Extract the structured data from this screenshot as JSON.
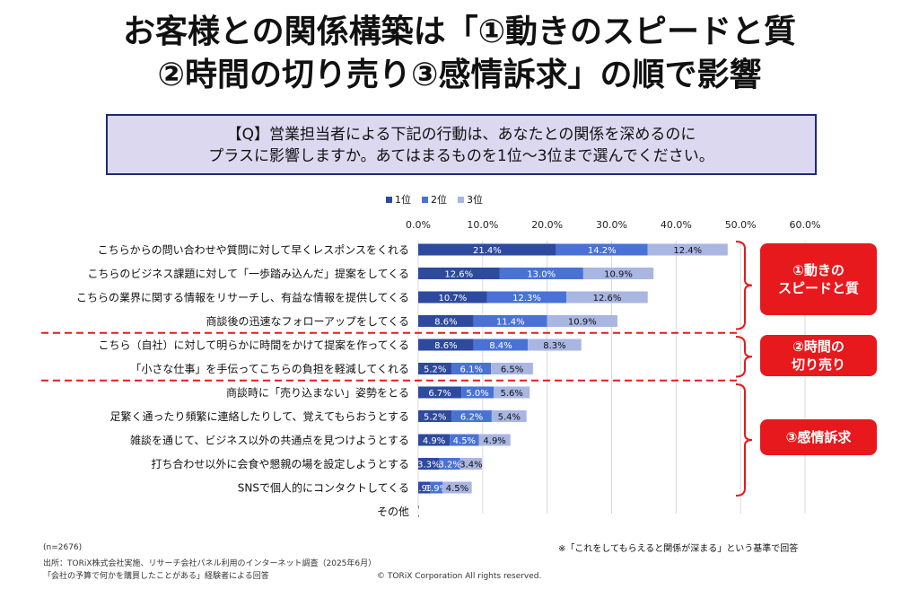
{
  "title_line1": "お客様との関係構築は「①動きのスピードと質",
  "title_line2": "②時間の切り売り③感情訴求」の順で影響",
  "question_line1": "【Q】営業担当者による下記の行動は、あなたとの関係を深めるのに",
  "question_line2": "プラスに影響しますか。あてはまるものを1位～3位まで選んでください。",
  "badges": [
    {
      "line1": "①動きの",
      "line2": "スピードと質"
    },
    {
      "line1": "②時間の",
      "line2": "切り売り"
    },
    {
      "line1": "③感情訴求",
      "line2": ""
    }
  ],
  "footer": {
    "n": "(n=2676)",
    "source1": "出所：TORiX株式会社実施、リサーチ会社パネル利用のインターネット調査（2025年6月）",
    "source2": "「会社の予算で何かを購買したことがある」経験者による回答",
    "note": "※「これをしてもらえると関係が深まる」という基準で回答",
    "copyright": "© TORiX Corporation All rights reserved."
  },
  "colors": {
    "rank1": "#2e4a9e",
    "rank2": "#4a72d6",
    "rank3": "#a9b6e2",
    "accent": "#e8191d",
    "divider": "#e8191d",
    "bracket": "#e8191d"
  },
  "chart_data": {
    "type": "bar",
    "orientation": "horizontal",
    "stacked": true,
    "xlim": [
      0,
      60
    ],
    "xticks": [
      "0.0%",
      "10.0%",
      "20.0%",
      "30.0%",
      "40.0%",
      "50.0%",
      "60.0%"
    ],
    "legend_position": "top",
    "categories": [
      "こちらからの問い合わせや質問に対して早くレスポンスをくれる",
      "こちらのビジネス課題に対して「一歩踏み込んだ」提案をしてくる",
      "こちらの業界に関する情報をリサーチし、有益な情報を提供してくる",
      "商談後の迅速なフォローアップをしてくる",
      "こちら（自社）に対して明らかに時間をかけて提案を作ってくる",
      "「小さな仕事」を手伝ってこちらの負担を軽減してくれる",
      "商談時に「売り込まない」姿勢をとる",
      "足繁く通ったり頻繁に連絡したりして、覚えてもらおうとする",
      "雑談を通じて、ビジネス以外の共通点を見つけようとする",
      "打ち合わせ以外に会食や懇親の場を設定しようとする",
      "SNSで個人的にコンタクトしてくる",
      "その他"
    ],
    "series": [
      {
        "name": "1位",
        "values": [
          21.4,
          12.6,
          10.7,
          8.6,
          8.6,
          5.2,
          6.7,
          5.2,
          4.9,
          3.3,
          1.9,
          0.1
        ],
        "labels": [
          "21.4%",
          "12.6%",
          "10.7%",
          "8.6%",
          "8.6%",
          "5.2%",
          "6.7%",
          "5.2%",
          "4.9%",
          "3.3%",
          "1.9%",
          "0.1%"
        ]
      },
      {
        "name": "2位",
        "values": [
          14.2,
          13.0,
          12.3,
          11.4,
          8.4,
          6.1,
          5.0,
          6.2,
          4.5,
          3.2,
          1.9,
          0.0
        ],
        "labels": [
          "14.2%",
          "13.0%",
          "12.3%",
          "11.4%",
          "8.4%",
          "6.1%",
          "5.0%",
          "6.2%",
          "4.5%",
          "3.2%",
          "1.9%",
          ""
        ]
      },
      {
        "name": "3位",
        "values": [
          12.4,
          10.9,
          12.6,
          10.9,
          8.3,
          6.5,
          5.6,
          5.4,
          4.9,
          3.4,
          4.5,
          0.0
        ],
        "labels": [
          "12.4%",
          "10.9%",
          "12.6%",
          "10.9%",
          "8.3%",
          "6.5%",
          "5.6%",
          "5.4%",
          "4.9%",
          "3.4%",
          "4.5%",
          ""
        ]
      }
    ]
  }
}
